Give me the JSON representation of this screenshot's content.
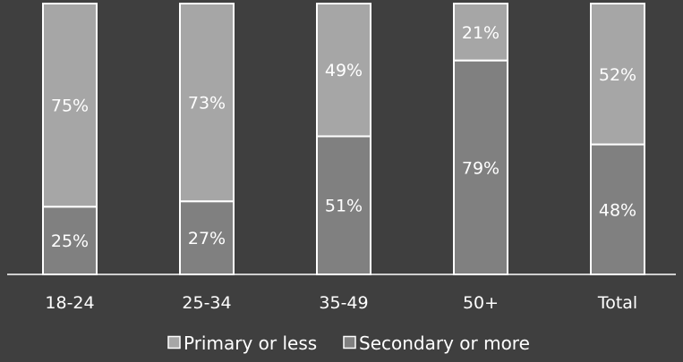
{
  "chart_data": {
    "type": "bar",
    "stacked": true,
    "percent_stacked": true,
    "categories": [
      "18-24",
      "25-34",
      "35-49",
      "50+",
      "Total"
    ],
    "series": [
      {
        "name": "Secondary or more",
        "values": [
          25,
          27,
          51,
          79,
          48
        ],
        "labels": [
          "25%",
          "27%",
          "51%",
          "79%",
          "48%"
        ],
        "color": "#808080"
      },
      {
        "name": "Primary or less",
        "values": [
          75,
          73,
          49,
          21,
          52
        ],
        "labels": [
          "75%",
          "73%",
          "49%",
          "21%",
          "52%"
        ],
        "color": "#a6a6a6"
      }
    ],
    "ylim": [
      0,
      100
    ],
    "legend": {
      "placement": "bottom",
      "items": [
        {
          "name": "Primary or less",
          "color": "#a6a6a6"
        },
        {
          "name": "Secondary or more",
          "color": "#808080"
        }
      ]
    },
    "colors": {
      "background": "#3f3f3f",
      "border": "#ffffff",
      "text": "#ffffff"
    },
    "grid": false
  }
}
